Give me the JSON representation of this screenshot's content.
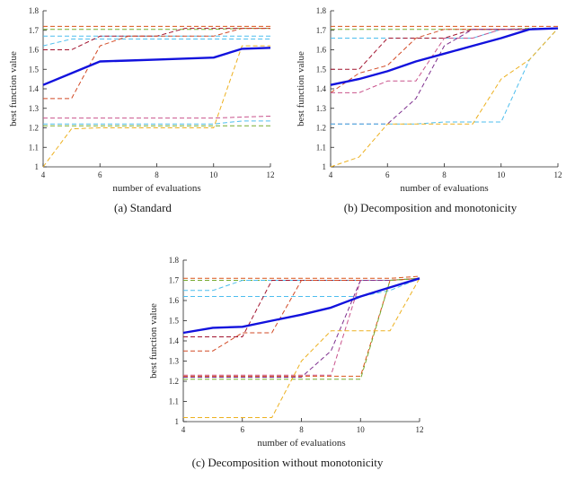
{
  "figure": {
    "captions": [
      "(a) Standard",
      "(b) Decomposition and monotonicity",
      "(c) Decomposition without monotonicity"
    ]
  },
  "chart_data": [
    {
      "type": "line",
      "subplot": "a",
      "caption": "(a) Standard",
      "xlabel": "number of evaluations",
      "ylabel": "best function value",
      "xlim": [
        4,
        12
      ],
      "ylim": [
        1,
        1.8
      ],
      "xticks": [
        4,
        6,
        8,
        10,
        12
      ],
      "yticks": [
        1,
        1.1,
        1.2,
        1.3,
        1.4,
        1.5,
        1.6,
        1.7,
        1.8
      ],
      "grid": false,
      "legend": null,
      "x": [
        4,
        5,
        6,
        7,
        8,
        9,
        10,
        11,
        12
      ],
      "series": [
        {
          "name": "run-orange-top",
          "color": "#D95319",
          "style": "dashed",
          "width": 1,
          "values": [
            1.72,
            1.72,
            1.72,
            1.72,
            1.72,
            1.72,
            1.72,
            1.72,
            1.72
          ]
        },
        {
          "name": "run-green-top",
          "color": "#77AC30",
          "style": "dashed",
          "width": 1,
          "values": [
            1.705,
            1.705,
            1.705,
            1.705,
            1.705,
            1.705,
            1.705,
            1.71,
            1.71
          ]
        },
        {
          "name": "run-teal-high",
          "color": "#4DBEEE",
          "style": "dashed",
          "width": 1,
          "values": [
            1.67,
            1.67,
            1.67,
            1.67,
            1.67,
            1.67,
            1.67,
            1.67,
            1.67
          ]
        },
        {
          "name": "run-teal-mid",
          "color": "#4DBEEE",
          "style": "dashed",
          "width": 1,
          "values": [
            1.62,
            1.655,
            1.655,
            1.655,
            1.655,
            1.655,
            1.655,
            1.655,
            1.655
          ]
        },
        {
          "name": "run-maroon-rise",
          "color": "#A2142F",
          "style": "dashed",
          "width": 1,
          "values": [
            1.6,
            1.6,
            1.67,
            1.67,
            1.67,
            1.71,
            1.71,
            1.71,
            1.71
          ]
        },
        {
          "name": "run-red-rise",
          "color": "#d24a26",
          "style": "dashed",
          "width": 1,
          "values": [
            1.35,
            1.35,
            1.62,
            1.67,
            1.67,
            1.67,
            1.67,
            1.71,
            1.71
          ]
        },
        {
          "name": "run-pink-flat",
          "color": "#c9538c",
          "style": "dashed",
          "width": 1,
          "values": [
            1.25,
            1.25,
            1.25,
            1.25,
            1.25,
            1.25,
            1.25,
            1.255,
            1.26
          ]
        },
        {
          "name": "run-cyan-low",
          "color": "#4DBEEE",
          "style": "dashed",
          "width": 1,
          "values": [
            1.22,
            1.22,
            1.22,
            1.22,
            1.22,
            1.22,
            1.22,
            1.235,
            1.235
          ]
        },
        {
          "name": "run-green-low",
          "color": "#77AC30",
          "style": "dashed",
          "width": 1,
          "values": [
            1.21,
            1.21,
            1.21,
            1.21,
            1.21,
            1.21,
            1.21,
            1.21,
            1.21
          ]
        },
        {
          "name": "run-yellow",
          "color": "#EDB120",
          "style": "dashed",
          "width": 1,
          "values": [
            1.0,
            1.195,
            1.2,
            1.2,
            1.2,
            1.2,
            1.2,
            1.62,
            1.62
          ]
        },
        {
          "name": "mean-best-value",
          "color": "#1212dd",
          "style": "solid",
          "width": 2.4,
          "values": [
            1.42,
            1.48,
            1.54,
            1.545,
            1.55,
            1.555,
            1.56,
            1.605,
            1.61
          ]
        }
      ]
    },
    {
      "type": "line",
      "subplot": "b",
      "caption": "(b) Decomposition and monotonicity",
      "xlabel": "number of evaluations",
      "ylabel": "best function value",
      "xlim": [
        4,
        12
      ],
      "ylim": [
        1,
        1.8
      ],
      "xticks": [
        4,
        6,
        8,
        10,
        12
      ],
      "yticks": [
        1,
        1.1,
        1.2,
        1.3,
        1.4,
        1.5,
        1.6,
        1.7,
        1.8
      ],
      "grid": false,
      "legend": null,
      "x": [
        4,
        5,
        6,
        7,
        8,
        9,
        10,
        11,
        12
      ],
      "series": [
        {
          "name": "run-orange-top",
          "color": "#D95319",
          "style": "dashed",
          "width": 1,
          "values": [
            1.72,
            1.72,
            1.72,
            1.72,
            1.72,
            1.72,
            1.72,
            1.72,
            1.72
          ]
        },
        {
          "name": "run-green-top",
          "color": "#77AC30",
          "style": "dashed",
          "width": 1,
          "values": [
            1.705,
            1.705,
            1.705,
            1.705,
            1.705,
            1.705,
            1.705,
            1.71,
            1.71
          ]
        },
        {
          "name": "run-teal-high",
          "color": "#4DBEEE",
          "style": "dashed",
          "width": 1,
          "values": [
            1.66,
            1.66,
            1.66,
            1.66,
            1.66,
            1.66,
            1.705,
            1.705,
            1.71
          ]
        },
        {
          "name": "run-maroon-rise",
          "color": "#A2142F",
          "style": "dashed",
          "width": 1,
          "values": [
            1.5,
            1.5,
            1.66,
            1.66,
            1.66,
            1.705,
            1.705,
            1.705,
            1.71
          ]
        },
        {
          "name": "run-red-rise",
          "color": "#d24a26",
          "style": "dashed",
          "width": 1,
          "values": [
            1.38,
            1.48,
            1.52,
            1.66,
            1.705,
            1.705,
            1.705,
            1.705,
            1.71
          ]
        },
        {
          "name": "run-pink-rise",
          "color": "#c9538c",
          "style": "dashed",
          "width": 1,
          "values": [
            1.38,
            1.38,
            1.44,
            1.44,
            1.66,
            1.66,
            1.705,
            1.705,
            1.71
          ]
        },
        {
          "name": "run-purple-rise",
          "color": "#7E2F8E",
          "style": "dashed",
          "width": 1,
          "values": [
            1.22,
            1.22,
            1.22,
            1.35,
            1.62,
            1.705,
            1.705,
            1.705,
            1.71
          ]
        },
        {
          "name": "run-cyan-low",
          "color": "#4DBEEE",
          "style": "dashed",
          "width": 1,
          "values": [
            1.22,
            1.22,
            1.22,
            1.22,
            1.23,
            1.23,
            1.23,
            1.55,
            1.71
          ]
        },
        {
          "name": "run-yellow",
          "color": "#EDB120",
          "style": "dashed",
          "width": 1,
          "values": [
            1.0,
            1.05,
            1.22,
            1.22,
            1.22,
            1.22,
            1.45,
            1.55,
            1.71
          ]
        },
        {
          "name": "mean-best-value",
          "color": "#1212dd",
          "style": "solid",
          "width": 2.4,
          "values": [
            1.42,
            1.45,
            1.49,
            1.54,
            1.58,
            1.62,
            1.66,
            1.705,
            1.71
          ]
        }
      ]
    },
    {
      "type": "line",
      "subplot": "c",
      "caption": "(c) Decomposition without monotonicity",
      "xlabel": "number of evaluations",
      "ylabel": "best function value",
      "xlim": [
        4,
        12
      ],
      "ylim": [
        1,
        1.8
      ],
      "xticks": [
        4,
        6,
        8,
        10,
        12
      ],
      "yticks": [
        1,
        1.1,
        1.2,
        1.3,
        1.4,
        1.5,
        1.6,
        1.7,
        1.8
      ],
      "grid": false,
      "legend": null,
      "x": [
        4,
        5,
        6,
        7,
        8,
        9,
        10,
        11,
        12
      ],
      "series": [
        {
          "name": "run-orange-top",
          "color": "#D95319",
          "style": "dashed",
          "width": 1,
          "values": [
            1.71,
            1.71,
            1.71,
            1.71,
            1.71,
            1.71,
            1.71,
            1.71,
            1.72
          ]
        },
        {
          "name": "run-green-top",
          "color": "#77AC30",
          "style": "dashed",
          "width": 1,
          "values": [
            1.7,
            1.7,
            1.7,
            1.7,
            1.7,
            1.7,
            1.7,
            1.7,
            1.71
          ]
        },
        {
          "name": "run-teal-high",
          "color": "#4DBEEE",
          "style": "dashed",
          "width": 1,
          "values": [
            1.65,
            1.65,
            1.7,
            1.7,
            1.7,
            1.7,
            1.7,
            1.7,
            1.71
          ]
        },
        {
          "name": "run-teal-mid",
          "color": "#4DBEEE",
          "style": "dashed",
          "width": 1,
          "values": [
            1.62,
            1.62,
            1.62,
            1.62,
            1.62,
            1.62,
            1.62,
            1.65,
            1.71
          ]
        },
        {
          "name": "run-maroon-rise",
          "color": "#A2142F",
          "style": "dashed",
          "width": 1,
          "values": [
            1.42,
            1.42,
            1.42,
            1.7,
            1.7,
            1.7,
            1.7,
            1.7,
            1.71
          ]
        },
        {
          "name": "run-red-rise",
          "color": "#d24a26",
          "style": "dashed",
          "width": 1,
          "values": [
            1.35,
            1.35,
            1.44,
            1.44,
            1.7,
            1.7,
            1.7,
            1.7,
            1.71
          ]
        },
        {
          "name": "run-pink-flat",
          "color": "#c9538c",
          "style": "dashed",
          "width": 1,
          "values": [
            1.23,
            1.23,
            1.23,
            1.23,
            1.23,
            1.23,
            1.7,
            1.7,
            1.71
          ]
        },
        {
          "name": "run-purple-rise",
          "color": "#7E2F8E",
          "style": "dashed",
          "width": 1,
          "values": [
            1.22,
            1.22,
            1.22,
            1.22,
            1.22,
            1.35,
            1.7,
            1.7,
            1.71
          ]
        },
        {
          "name": "run-orange-low",
          "color": "#D95319",
          "style": "dashed",
          "width": 1,
          "values": [
            1.225,
            1.225,
            1.225,
            1.225,
            1.225,
            1.225,
            1.225,
            1.7,
            1.71
          ]
        },
        {
          "name": "run-green-low",
          "color": "#77AC30",
          "style": "dashed",
          "width": 1,
          "values": [
            1.21,
            1.21,
            1.21,
            1.21,
            1.21,
            1.21,
            1.21,
            1.7,
            1.71
          ]
        },
        {
          "name": "run-yellow",
          "color": "#EDB120",
          "style": "dashed",
          "width": 1,
          "values": [
            1.02,
            1.02,
            1.02,
            1.02,
            1.3,
            1.45,
            1.45,
            1.45,
            1.71
          ]
        },
        {
          "name": "mean-best-value",
          "color": "#1212dd",
          "style": "solid",
          "width": 2.4,
          "values": [
            1.44,
            1.465,
            1.47,
            1.5,
            1.53,
            1.565,
            1.62,
            1.665,
            1.71
          ]
        }
      ]
    }
  ]
}
